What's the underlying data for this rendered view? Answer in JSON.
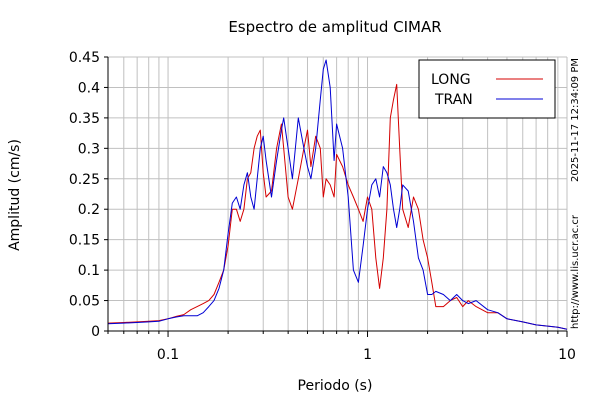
{
  "chart_data": {
    "type": "line",
    "title": "Espectro de amplitud CIMAR",
    "xlabel": "Periodo (s)",
    "ylabel": "Amplitud (cm/s)",
    "x_scale": "log",
    "xlim": [
      0.05,
      10
    ],
    "ylim": [
      0,
      0.45
    ],
    "x_tick_labels": [
      "0.1",
      "1",
      "10"
    ],
    "y_tick_labels": [
      "0",
      "0.05",
      "0.1",
      "0.15",
      "0.2",
      "0.25",
      "0.3",
      "0.35",
      "0.4",
      "0.45"
    ],
    "grid": true,
    "legend_position": "top-right",
    "side_texts": {
      "timestamp": "2025-11-17 12:34:09 PM",
      "url": "http://www.lis.ucr.ac.cr"
    },
    "colors": {
      "long": "#d40000",
      "tran": "#0000d4",
      "grid": "#c0c0c0"
    },
    "series": [
      {
        "name": "LONG",
        "color": "#d40000",
        "x": [
          0.05,
          0.06,
          0.07,
          0.08,
          0.09,
          0.1,
          0.11,
          0.12,
          0.13,
          0.14,
          0.15,
          0.16,
          0.17,
          0.18,
          0.19,
          0.2,
          0.21,
          0.22,
          0.23,
          0.24,
          0.25,
          0.26,
          0.27,
          0.28,
          0.29,
          0.3,
          0.31,
          0.33,
          0.35,
          0.37,
          0.38,
          0.4,
          0.42,
          0.45,
          0.48,
          0.5,
          0.52,
          0.55,
          0.58,
          0.6,
          0.62,
          0.65,
          0.68,
          0.7,
          0.75,
          0.8,
          0.85,
          0.9,
          0.95,
          1.0,
          1.05,
          1.1,
          1.15,
          1.2,
          1.25,
          1.3,
          1.35,
          1.4,
          1.45,
          1.5,
          1.6,
          1.7,
          1.8,
          1.9,
          2.0,
          2.1,
          2.2,
          2.4,
          2.6,
          2.8,
          3.0,
          3.2,
          3.5,
          4.0,
          4.5,
          5.0,
          6.0,
          7.0,
          8.0,
          9.0,
          10.0
        ],
        "y": [
          0.013,
          0.014,
          0.015,
          0.016,
          0.017,
          0.02,
          0.024,
          0.027,
          0.035,
          0.04,
          0.045,
          0.05,
          0.06,
          0.08,
          0.1,
          0.14,
          0.2,
          0.2,
          0.18,
          0.2,
          0.25,
          0.26,
          0.3,
          0.32,
          0.33,
          0.26,
          0.22,
          0.23,
          0.3,
          0.34,
          0.3,
          0.22,
          0.2,
          0.25,
          0.3,
          0.33,
          0.27,
          0.32,
          0.3,
          0.22,
          0.25,
          0.24,
          0.22,
          0.29,
          0.27,
          0.24,
          0.22,
          0.2,
          0.18,
          0.22,
          0.2,
          0.12,
          0.07,
          0.12,
          0.2,
          0.35,
          0.38,
          0.405,
          0.3,
          0.2,
          0.17,
          0.22,
          0.2,
          0.15,
          0.12,
          0.08,
          0.04,
          0.04,
          0.05,
          0.055,
          0.04,
          0.05,
          0.04,
          0.03,
          0.03,
          0.02,
          0.015,
          0.01,
          0.008,
          0.006,
          0.003
        ]
      },
      {
        "name": "TRAN",
        "color": "#0000d4",
        "x": [
          0.05,
          0.06,
          0.07,
          0.08,
          0.09,
          0.1,
          0.11,
          0.12,
          0.13,
          0.14,
          0.15,
          0.16,
          0.17,
          0.18,
          0.19,
          0.2,
          0.21,
          0.22,
          0.23,
          0.24,
          0.25,
          0.26,
          0.27,
          0.28,
          0.29,
          0.3,
          0.31,
          0.33,
          0.35,
          0.37,
          0.38,
          0.4,
          0.42,
          0.45,
          0.48,
          0.5,
          0.52,
          0.55,
          0.58,
          0.6,
          0.62,
          0.65,
          0.68,
          0.7,
          0.75,
          0.8,
          0.85,
          0.9,
          0.95,
          1.0,
          1.05,
          1.1,
          1.15,
          1.2,
          1.25,
          1.3,
          1.35,
          1.4,
          1.45,
          1.5,
          1.6,
          1.7,
          1.8,
          1.9,
          2.0,
          2.1,
          2.2,
          2.4,
          2.6,
          2.8,
          3.0,
          3.2,
          3.5,
          4.0,
          4.5,
          5.0,
          6.0,
          7.0,
          8.0,
          9.0,
          10.0
        ],
        "y": [
          0.012,
          0.013,
          0.014,
          0.015,
          0.016,
          0.02,
          0.023,
          0.025,
          0.025,
          0.025,
          0.03,
          0.04,
          0.05,
          0.07,
          0.1,
          0.16,
          0.21,
          0.22,
          0.2,
          0.24,
          0.26,
          0.22,
          0.2,
          0.25,
          0.3,
          0.32,
          0.28,
          0.22,
          0.28,
          0.33,
          0.35,
          0.3,
          0.25,
          0.35,
          0.3,
          0.27,
          0.25,
          0.3,
          0.38,
          0.43,
          0.445,
          0.4,
          0.28,
          0.34,
          0.3,
          0.22,
          0.1,
          0.08,
          0.14,
          0.2,
          0.24,
          0.25,
          0.22,
          0.27,
          0.26,
          0.24,
          0.2,
          0.17,
          0.2,
          0.24,
          0.23,
          0.18,
          0.12,
          0.1,
          0.06,
          0.06,
          0.065,
          0.06,
          0.05,
          0.06,
          0.05,
          0.045,
          0.05,
          0.035,
          0.03,
          0.02,
          0.015,
          0.01,
          0.008,
          0.006,
          0.003
        ]
      }
    ]
  }
}
